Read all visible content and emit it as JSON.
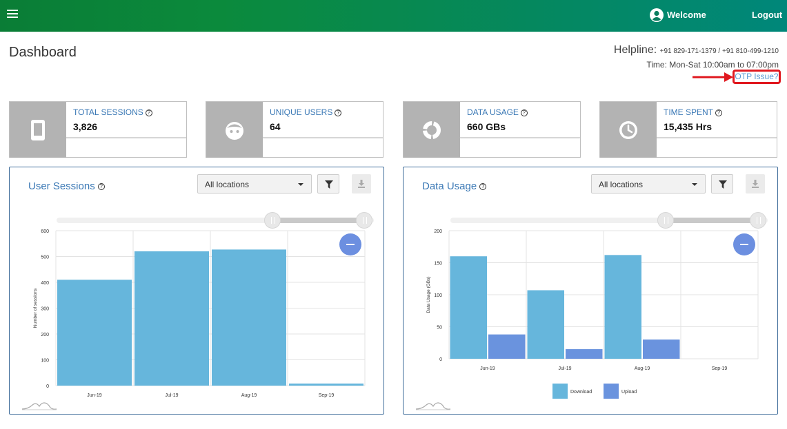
{
  "topbar": {
    "welcome": "Welcome",
    "logout": "Logout"
  },
  "page": {
    "title": "Dashboard"
  },
  "helpline": {
    "label": "Helpline:",
    "numbers": "+91 829-171-1379 / +91 810-499-1210",
    "time": "Time: Mon-Sat  10:00am to 07:00pm",
    "otp_link": "OTP Issue?"
  },
  "cards": [
    {
      "title": "TOTAL SESSIONS",
      "value": "3,826",
      "icon": "phone-icon"
    },
    {
      "title": "UNIQUE USERS",
      "value": "64",
      "icon": "face-icon"
    },
    {
      "title": "DATA USAGE",
      "value": "660 GBs",
      "icon": "donut-icon"
    },
    {
      "title": "TIME SPENT",
      "value": "15,435 Hrs",
      "icon": "clock-icon"
    }
  ],
  "colors": {
    "bar_primary": "#66b6dc",
    "bar_secondary": "#6a93de",
    "accent_link": "#3a78b5",
    "highlight": "#e0181f"
  },
  "panels": {
    "sessions": {
      "title": "User Sessions",
      "location": "All locations"
    },
    "usage": {
      "title": "Data Usage",
      "location": "All locations"
    }
  },
  "chart_data": [
    {
      "type": "bar",
      "categories": [
        "Jun-19",
        "Jul-19",
        "Aug-19",
        "Sep-19"
      ],
      "series": [
        {
          "values": [
            410,
            520,
            527,
            8
          ]
        }
      ],
      "ylabel": "Number of sessions",
      "xlabel": "",
      "ylim": [
        0,
        600
      ],
      "yticks": [
        0,
        100,
        200,
        300,
        400,
        500,
        600
      ],
      "grid": true
    },
    {
      "type": "bar",
      "categories": [
        "Jun-19",
        "Jul-19",
        "Aug-19",
        "Sep-19"
      ],
      "series": [
        {
          "name": "Download",
          "values": [
            160,
            107,
            162,
            0
          ]
        },
        {
          "name": "Upload",
          "values": [
            38,
            15,
            30,
            0
          ]
        }
      ],
      "ylabel": "Data Usage (GBs)",
      "xlabel": "",
      "ylim": [
        0,
        200
      ],
      "yticks": [
        0,
        50,
        100,
        150,
        200
      ],
      "grid": true,
      "legend": "bottom"
    }
  ]
}
